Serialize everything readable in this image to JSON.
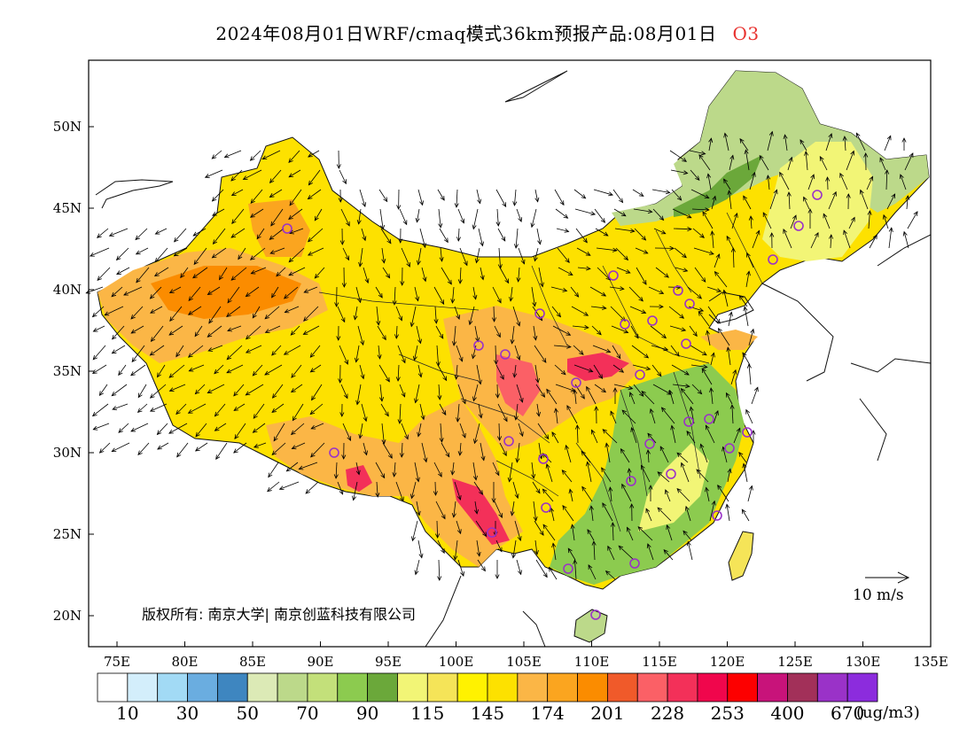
{
  "title": {
    "main": "2024年08月01日WRF/cmaq模式36km预报产品:08月01日",
    "species": "O3"
  },
  "axes": {
    "lat_ticks": [
      "50N",
      "45N",
      "40N",
      "35N",
      "30N",
      "25N",
      "20N"
    ],
    "lon_ticks": [
      "75E",
      "80E",
      "85E",
      "90E",
      "95E",
      "100E",
      "105E",
      "110E",
      "115E",
      "120E",
      "125E",
      "130E",
      "135E"
    ]
  },
  "credit": "版权所有: 南京大学| 南京创蓝科技有限公司",
  "wind_reference": "10 m/s",
  "colorbar": {
    "unit": "(ug/m3)",
    "colors": [
      "#ffffff",
      "#d3eefb",
      "#a2daf5",
      "#6aade0",
      "#3e86c0",
      "#dceab6",
      "#bcd98a",
      "#c3e07a",
      "#8ccb4f",
      "#6ba83a",
      "#f2f576",
      "#f5e458",
      "#fff200",
      "#fde100",
      "#fbb646",
      "#fba51f",
      "#fb8c00",
      "#f05a2a",
      "#fb6066",
      "#f33059",
      "#f0064c",
      "#fd0000",
      "#c8137a",
      "#a23059",
      "#9a32c8",
      "#8c2cdd"
    ],
    "labels": [
      "10",
      "30",
      "50",
      "70",
      "90",
      "115",
      "145",
      "174",
      "201",
      "228",
      "253",
      "400",
      "670"
    ]
  }
}
